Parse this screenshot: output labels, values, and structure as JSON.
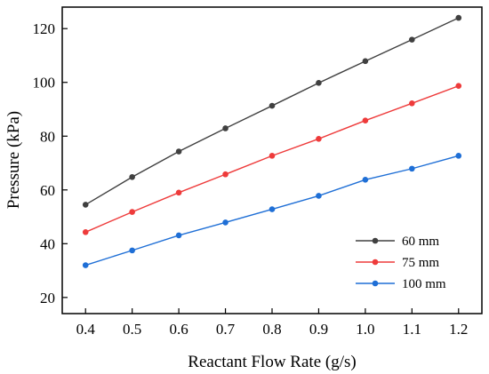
{
  "chart_data": {
    "type": "line",
    "xlabel": "Reactant Flow Rate (g/s)",
    "ylabel": "Pressure (kPa)",
    "x": [
      0.4,
      0.5,
      0.6,
      0.7,
      0.8,
      0.9,
      1.0,
      1.1,
      1.2
    ],
    "xlim": [
      0.35,
      1.25
    ],
    "ylim": [
      14,
      128
    ],
    "xticks": [
      "0.4",
      "0.5",
      "0.6",
      "0.7",
      "0.8",
      "0.9",
      "1.0",
      "1.1",
      "1.2"
    ],
    "yticks": [
      "20",
      "40",
      "60",
      "80",
      "100",
      "120"
    ],
    "grid": false,
    "legend_position": "bottom-right",
    "series": [
      {
        "name": "60 mm",
        "color": "#404040",
        "values": [
          54.5,
          64.8,
          74.3,
          82.9,
          91.3,
          99.8,
          107.9,
          115.9,
          124.0
        ]
      },
      {
        "name": "75 mm",
        "color": "#ee3b3b",
        "values": [
          44.3,
          51.8,
          59.0,
          65.8,
          72.7,
          79.0,
          85.8,
          92.2,
          98.7
        ]
      },
      {
        "name": "100 mm",
        "color": "#1f6fd6",
        "values": [
          32.0,
          37.5,
          43.1,
          47.9,
          52.8,
          57.8,
          63.8,
          67.9,
          72.7
        ]
      }
    ]
  }
}
